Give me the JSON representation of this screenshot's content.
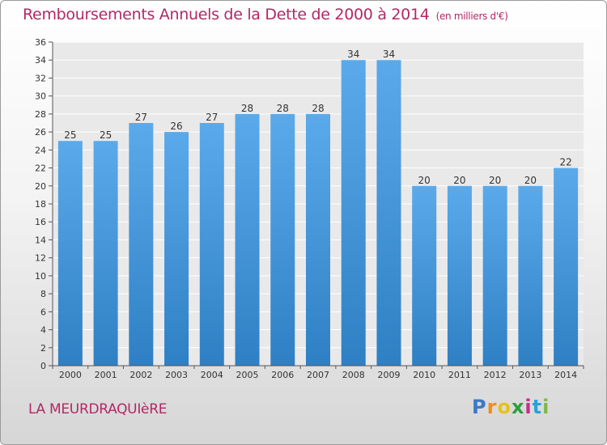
{
  "title": "Remboursements Annuels de la Dette de 2000 à 2014",
  "unit": "(en milliers d'€)",
  "commune": "LA MEURDRAQUIèRE",
  "brand": {
    "text": "Proxiti",
    "letters": [
      "P",
      "r",
      "o",
      "x",
      "i",
      "t",
      "i"
    ],
    "colors": [
      "#3a78c8",
      "#f28c1e",
      "#e6c21a",
      "#2f9e3c",
      "#c82c8c",
      "#2aa1d6",
      "#7cb84a"
    ]
  },
  "colors": {
    "bar": "#5aaaeb",
    "bar_dark": "#2f7fc4",
    "title": "#b22866"
  },
  "chart_data": {
    "type": "bar",
    "title": "Remboursements Annuels de la Dette de 2000 à 2014",
    "xlabel": "",
    "ylabel": "",
    "categories": [
      "2000",
      "2001",
      "2002",
      "2003",
      "2004",
      "2005",
      "2006",
      "2007",
      "2008",
      "2009",
      "2010",
      "2011",
      "2012",
      "2013",
      "2014"
    ],
    "values": [
      25,
      25,
      27,
      26,
      27,
      28,
      28,
      28,
      34,
      34,
      20,
      20,
      20,
      20,
      22
    ],
    "ylim": [
      0,
      36
    ],
    "yticks": [
      0,
      2,
      4,
      6,
      8,
      10,
      12,
      14,
      16,
      18,
      20,
      22,
      24,
      26,
      28,
      30,
      32,
      34,
      36
    ],
    "grid": true,
    "data_labels": true
  }
}
